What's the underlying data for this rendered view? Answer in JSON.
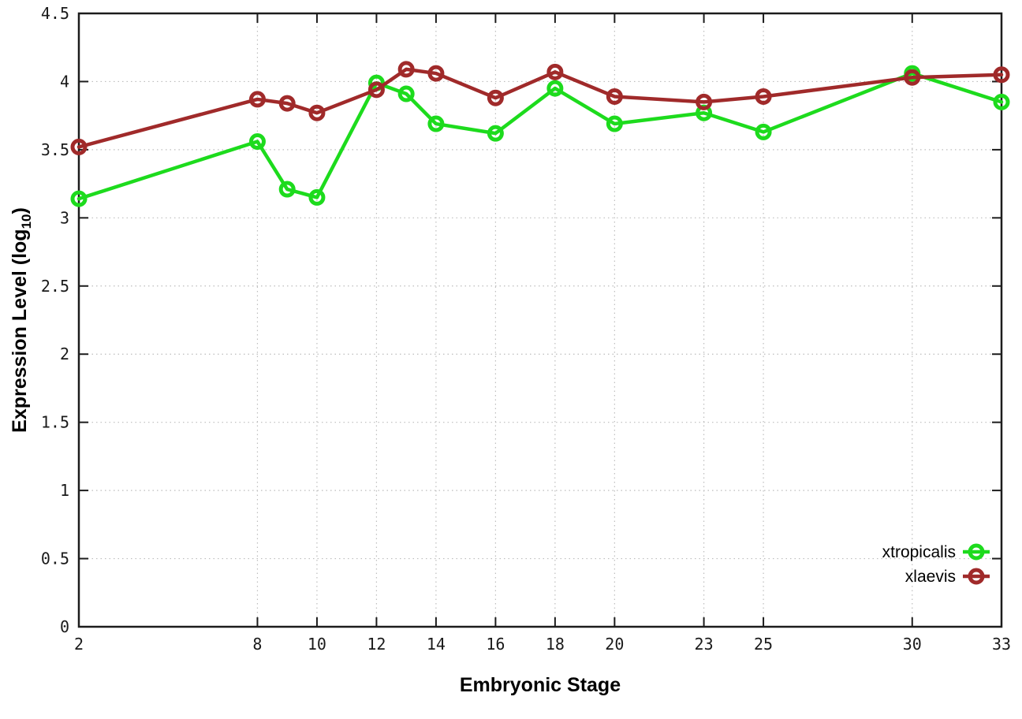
{
  "page": {
    "background": "#ffffff"
  },
  "chart_data": {
    "type": "line",
    "title": "",
    "xlabel": "Embryonic Stage",
    "ylabel": "Expression Level (log10)",
    "ylabel_parts": {
      "pre": "Expression Level (log",
      "sub": "10",
      "post": ")"
    },
    "xlim": [
      2,
      33
    ],
    "ylim": [
      0,
      4.5
    ],
    "grid": true,
    "legend_position": "inside-bottom-right",
    "x_ticks": [
      2,
      8,
      10,
      12,
      14,
      16,
      18,
      20,
      23,
      25,
      30,
      33
    ],
    "y_ticks": [
      0,
      0.5,
      1,
      1.5,
      2,
      2.5,
      3,
      3.5,
      4,
      4.5
    ],
    "y_tick_labels": [
      "0",
      "0.5",
      "1",
      "1.5",
      "2",
      "2.5",
      "3",
      "3.5",
      "4",
      "4.5"
    ],
    "x": [
      2,
      8,
      9,
      10,
      12,
      13,
      14,
      16,
      18,
      20,
      23,
      25,
      30,
      33
    ],
    "series": [
      {
        "name": "xtropicalis",
        "color": "#1ddb1d",
        "marker": "open-circle",
        "values": [
          3.14,
          3.56,
          3.21,
          3.15,
          3.99,
          3.91,
          3.69,
          3.62,
          3.95,
          3.69,
          3.77,
          3.63,
          4.06,
          3.85
        ]
      },
      {
        "name": "xlaevis",
        "color": "#a02a2a",
        "marker": "open-circle",
        "values": [
          3.52,
          3.87,
          3.84,
          3.77,
          3.94,
          4.09,
          4.06,
          3.88,
          4.07,
          3.89,
          3.85,
          3.89,
          4.03,
          4.05
        ]
      }
    ],
    "axis_color": "#1c1c1c",
    "grid_color": "#bdbdbd",
    "text_color": "#000000"
  }
}
